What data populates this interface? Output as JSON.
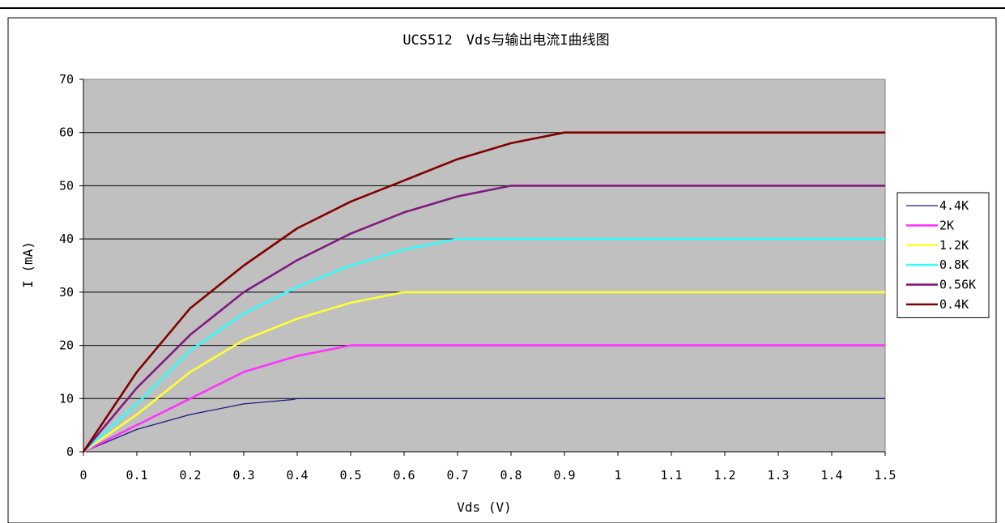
{
  "chart_data": {
    "type": "line",
    "title": "UCS512　Vds与输出电流I曲线图",
    "xlabel": "Vds (V)",
    "ylabel": "I (mA)",
    "xlim": [
      0,
      1.5
    ],
    "ylim": [
      0,
      70
    ],
    "x_ticks": [
      "0",
      "0.1",
      "0.2",
      "0.3",
      "0.4",
      "0.5",
      "0.6",
      "0.7",
      "0.8",
      "0.9",
      "1",
      "1.1",
      "1.2",
      "1.3",
      "1.4",
      "1.5"
    ],
    "y_ticks": [
      "0",
      "10",
      "20",
      "30",
      "40",
      "50",
      "60",
      "70"
    ],
    "grid": "horizontal",
    "plot_background": "#c0c0c0",
    "legend_position": "right",
    "series": [
      {
        "name": "4.4K",
        "color": "#1a1a80",
        "x": [
          0,
          0.1,
          0.2,
          0.3,
          0.39,
          0.4,
          1.5
        ],
        "values": [
          0,
          4.2,
          7,
          9,
          9.8,
          10,
          10
        ]
      },
      {
        "name": "2K",
        "color": "#ff33ff",
        "x": [
          0,
          0.1,
          0.2,
          0.3,
          0.4,
          0.5,
          1.5
        ],
        "values": [
          0,
          5,
          10,
          15,
          18,
          20,
          20
        ]
      },
      {
        "name": "1.2K",
        "color": "#ffff33",
        "x": [
          0,
          0.1,
          0.2,
          0.3,
          0.4,
          0.5,
          0.6,
          1.5
        ],
        "values": [
          0,
          7,
          15,
          21,
          25,
          28,
          30,
          30
        ]
      },
      {
        "name": "0.8K",
        "color": "#33ffff",
        "x": [
          0,
          0.1,
          0.2,
          0.3,
          0.4,
          0.5,
          0.6,
          0.7,
          1.5
        ],
        "values": [
          0,
          9,
          19,
          26,
          31,
          35,
          38,
          40,
          40
        ]
      },
      {
        "name": "0.56K",
        "color": "#801a80",
        "x": [
          0,
          0.1,
          0.2,
          0.3,
          0.4,
          0.5,
          0.6,
          0.7,
          0.8,
          1.5
        ],
        "values": [
          0,
          12,
          22,
          30,
          36,
          41,
          45,
          48,
          50,
          50
        ]
      },
      {
        "name": "0.4K",
        "color": "#800000",
        "x": [
          0,
          0.1,
          0.2,
          0.3,
          0.4,
          0.5,
          0.6,
          0.7,
          0.8,
          0.9,
          1.5
        ],
        "values": [
          0,
          15,
          27,
          35,
          42,
          47,
          51,
          55,
          58,
          60,
          60
        ]
      }
    ]
  }
}
